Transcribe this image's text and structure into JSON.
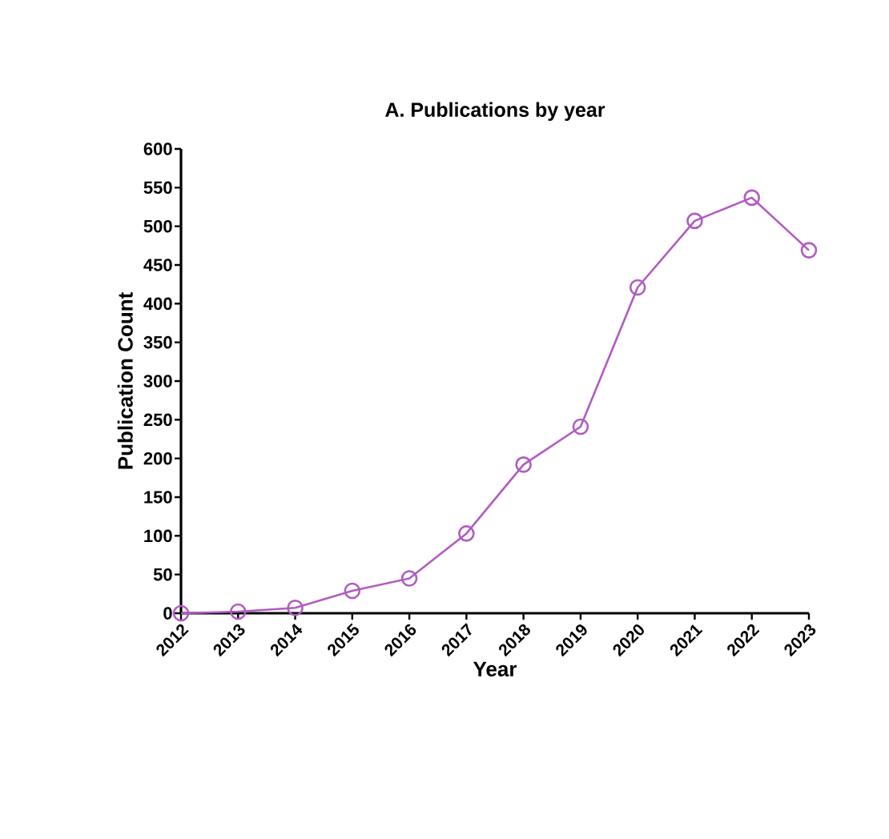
{
  "chart_data": {
    "type": "line",
    "title": "A. Publications by year",
    "xlabel": "Year",
    "ylabel": "Publication Count",
    "categories": [
      "2012",
      "2013",
      "2014",
      "2015",
      "2016",
      "2017",
      "2018",
      "2019",
      "2020",
      "2021",
      "2022",
      "2023"
    ],
    "values": [
      0,
      2,
      7,
      29,
      45,
      103,
      192,
      241,
      421,
      507,
      537,
      469
    ],
    "color": "#b05cc0",
    "marker": "circle",
    "line_style": "solid",
    "ylim": [
      0,
      600
    ],
    "yticks": [
      0,
      50,
      100,
      150,
      200,
      250,
      300,
      350,
      400,
      450,
      500,
      550,
      600
    ],
    "grid": false
  }
}
